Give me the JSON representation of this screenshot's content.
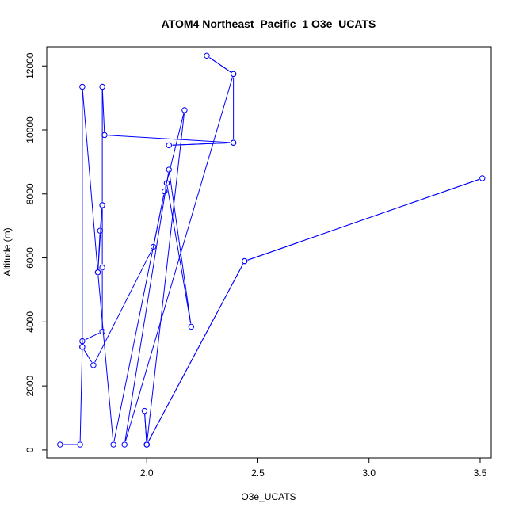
{
  "chart_data": {
    "type": "scatter",
    "title": "ATOM4 Northeast_Pacific_1 O3e_UCATS",
    "xlabel": "O3e_UCATS",
    "ylabel": "Altitude (m)",
    "xlim": [
      1.55,
      3.55
    ],
    "ylim": [
      -250,
      12600
    ],
    "xticks": [
      2.0,
      2.5,
      3.0,
      3.5
    ],
    "xtick_labels": [
      "2.0",
      "2.5",
      "3.0",
      "3.5"
    ],
    "yticks": [
      0,
      2000,
      4000,
      6000,
      8000,
      10000,
      12000
    ],
    "ytick_labels": [
      "0",
      "2000",
      "4000",
      "6000",
      "8000",
      "10000",
      "12000"
    ],
    "grid": false,
    "line_connected": true,
    "series": [
      {
        "color": "#0000ff",
        "x": [
          2.0,
          2.44,
          3.51,
          2.44,
          2.0,
          1.99,
          2.0,
          2.17,
          2.08,
          2.03,
          1.76,
          1.71,
          1.71,
          1.8,
          1.8,
          1.8,
          1.8,
          1.81,
          2.39,
          2.1,
          2.39,
          2.39,
          2.27,
          2.39,
          1.9,
          2.09,
          2.1,
          2.2,
          2.09,
          2.08,
          1.85,
          1.78,
          1.79,
          1.8,
          1.78,
          1.71,
          1.71,
          1.7,
          1.61
        ],
        "y": [
          170,
          5900,
          8490,
          5900,
          170,
          1220,
          170,
          10620,
          8080,
          6350,
          2650,
          3220,
          3400,
          3700,
          5700,
          7650,
          11350,
          9840,
          9600,
          9520,
          9600,
          11750,
          12320,
          11750,
          170,
          8340,
          8760,
          3850,
          8340,
          8080,
          170,
          5550,
          6850,
          7650,
          5550,
          11350,
          3220,
          170,
          170
        ]
      }
    ]
  }
}
